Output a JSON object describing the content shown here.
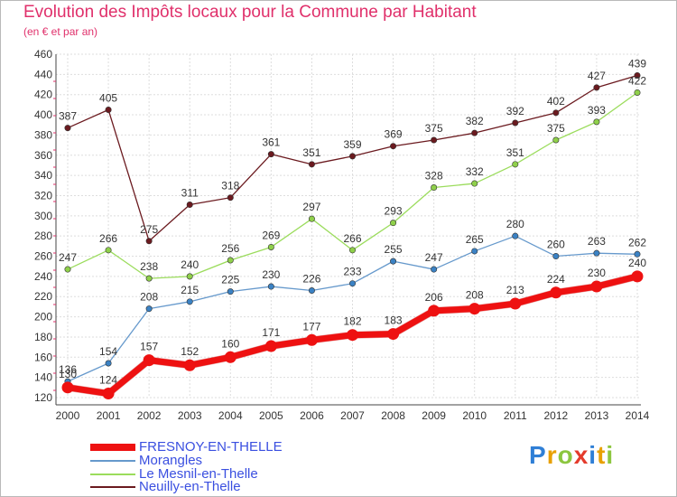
{
  "header": {
    "title": "Evolution des Impôts locaux pour la Commune par Habitant",
    "subtitle": "(en € et par an)"
  },
  "logo": {
    "letters": [
      "P",
      "r",
      "o",
      "x",
      "i",
      "t",
      "i"
    ],
    "text": "Proxiti"
  },
  "chart_data": {
    "type": "line",
    "title": "Evolution des Impôts locaux pour la Commune par Habitant",
    "subtitle": "(en € et par an)",
    "xlabel": "",
    "ylabel": "",
    "ylim": [
      120,
      460
    ],
    "yticks": [
      120,
      140,
      160,
      180,
      200,
      220,
      240,
      260,
      280,
      300,
      320,
      340,
      360,
      380,
      400,
      420,
      440,
      460
    ],
    "grid": true,
    "legend_position": "bottom-left",
    "categories": [
      "2000",
      "2001",
      "2002",
      "2003",
      "2004",
      "2005",
      "2006",
      "2007",
      "2008",
      "2009",
      "2010",
      "2011",
      "2012",
      "2013",
      "2014"
    ],
    "series": [
      {
        "name": "Neuilly-en-Thelle",
        "color": "#6b1a1f",
        "marker": "#6b1a1f",
        "width": 1.3,
        "point_radius": 3.2,
        "label_above": true,
        "values": [
          387,
          405,
          275,
          311,
          318,
          361,
          351,
          359,
          369,
          375,
          382,
          392,
          402,
          427,
          439
        ]
      },
      {
        "name": "Le Mesnil-en-Thelle",
        "color": "#9bdc5c",
        "marker": "#8fd04a",
        "width": 1.3,
        "point_radius": 3.2,
        "label_above": true,
        "values": [
          247,
          266,
          238,
          240,
          256,
          269,
          297,
          266,
          293,
          328,
          332,
          351,
          375,
          393,
          422
        ]
      },
      {
        "name": "Morangles",
        "color": "#6699cc",
        "marker": "#3b82c4",
        "width": 1.3,
        "point_radius": 3.2,
        "label_above": true,
        "values": [
          136,
          154,
          208,
          215,
          225,
          230,
          226,
          233,
          255,
          247,
          265,
          280,
          260,
          263,
          262
        ]
      },
      {
        "name": "FRESNOY-EN-THELLE",
        "color": "#ee1111",
        "marker": "#ee1111",
        "width": 7,
        "point_radius": 6.5,
        "label_above": true,
        "values": [
          130,
          124,
          157,
          152,
          160,
          171,
          177,
          182,
          183,
          206,
          208,
          213,
          224,
          230,
          240
        ]
      }
    ]
  },
  "legend": [
    {
      "label": "FRESNOY-EN-THELLE",
      "color": "#ee1111"
    },
    {
      "label": "Morangles",
      "color": "#6699cc"
    },
    {
      "label": "Le Mesnil-en-Thelle",
      "color": "#9bdc5c"
    },
    {
      "label": "Neuilly-en-Thelle",
      "color": "#6b1a1f"
    }
  ]
}
